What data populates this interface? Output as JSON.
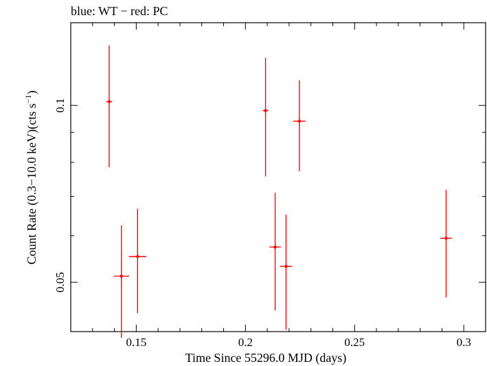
{
  "chart_data": {
    "type": "scatter",
    "title": "blue: WT − red: PC",
    "xlabel": "Time Since 55296.0 MJD (days)",
    "ylabel_main": "Count Rate (0.3−10.0 keV)(cts s",
    "ylabel_sup": "−1",
    "ylabel_close": ")",
    "xlim": [
      0.12,
      0.31
    ],
    "ylim": [
      0.0412,
      0.1383
    ],
    "yscale": "log",
    "x_ticks": [
      {
        "value": 0.15,
        "label": "0.15"
      },
      {
        "value": 0.2,
        "label": "0.2"
      },
      {
        "value": 0.25,
        "label": "0.25"
      },
      {
        "value": 0.3,
        "label": "0.3"
      }
    ],
    "x_minor_ticks": [
      0.13,
      0.14,
      0.16,
      0.17,
      0.18,
      0.19,
      0.21,
      0.22,
      0.23,
      0.24,
      0.26,
      0.27,
      0.28,
      0.29
    ],
    "y_ticks": [
      {
        "value": 0.05,
        "label": "0.05"
      },
      {
        "value": 0.1,
        "label": "0.1"
      }
    ],
    "y_minor_ticks": [
      0.06,
      0.07,
      0.08,
      0.09
    ],
    "grid": false,
    "series": [
      {
        "color": "#ff0000",
        "points": [
          {
            "x": 0.1376,
            "xerr": 0.0013,
            "y": 0.1015,
            "ylo": 0.0785,
            "yhi": 0.1265
          },
          {
            "x": 0.1432,
            "xerr": 0.0035,
            "y": 0.0512,
            "ylo": 0.0402,
            "yhi": 0.0625
          },
          {
            "x": 0.1506,
            "xerr": 0.004,
            "y": 0.0553,
            "ylo": 0.0443,
            "yhi": 0.0667
          },
          {
            "x": 0.2092,
            "xerr": 0.0013,
            "y": 0.098,
            "ylo": 0.0757,
            "yhi": 0.1205
          },
          {
            "x": 0.2136,
            "xerr": 0.0026,
            "y": 0.0574,
            "ylo": 0.0448,
            "yhi": 0.071
          },
          {
            "x": 0.2186,
            "xerr": 0.0028,
            "y": 0.0532,
            "ylo": 0.0415,
            "yhi": 0.0652
          },
          {
            "x": 0.2247,
            "xerr": 0.0028,
            "y": 0.094,
            "ylo": 0.0773,
            "yhi": 0.1103
          },
          {
            "x": 0.2919,
            "xerr": 0.0027,
            "y": 0.0594,
            "ylo": 0.0471,
            "yhi": 0.0718
          }
        ]
      }
    ]
  }
}
